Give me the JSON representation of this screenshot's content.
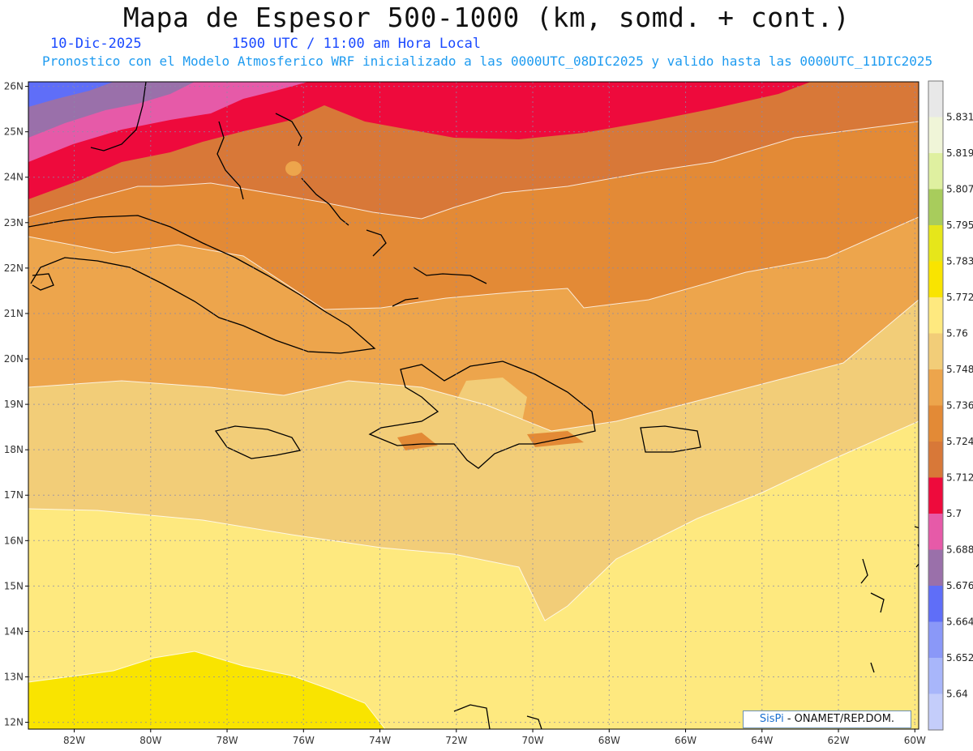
{
  "header": {
    "title": "Mapa de Espesor 500-1000 (km, somd. + cont.)",
    "date": "10-Dic-2025",
    "time": "1500 UTC / 11:00 am Hora Local",
    "model_line": "Pronostico con el Modelo Atmosferico WRF inicializado a las 0000UTC_08DIC2025 y valido hasta las  0000UTC_11DIC2025"
  },
  "map": {
    "lon_range": [
      -83.2,
      -59.9
    ],
    "lat_range": [
      11.85,
      26.1
    ],
    "lon_labels": [
      "82W",
      "80W",
      "78W",
      "76W",
      "74W",
      "72W",
      "70W",
      "68W",
      "66W",
      "64W",
      "62W",
      "60W"
    ],
    "lat_labels": [
      "26N",
      "25N",
      "24N",
      "23N",
      "22N",
      "21N",
      "20N",
      "19N",
      "18N",
      "17N",
      "16N",
      "15N",
      "14N",
      "13N",
      "12N"
    ]
  },
  "colorbar": {
    "labels": [
      "5.831",
      "5.819",
      "5.807",
      "5.795",
      "5.783",
      "5.772",
      "5.76",
      "5.748",
      "5.736",
      "5.724",
      "5.712",
      "5.7",
      "5.688",
      "5.676",
      "5.664",
      "5.652",
      "5.64"
    ],
    "colors": [
      "#e8e8e8",
      "#f0f5d8",
      "#dff0a0",
      "#a8cc5c",
      "#e6e61a",
      "#f9e400",
      "#fee97f",
      "#f2cd78",
      "#eda54c",
      "#e38a36",
      "#d87838",
      "#ee0a3c",
      "#e65aa8",
      "#9a70aa",
      "#5f6ef8",
      "#8a98f8",
      "#a8b6fa",
      "#c4cdfa"
    ]
  },
  "credit": {
    "brand": "SisPi",
    "text": "- ONAMET/REP.DOM."
  }
}
